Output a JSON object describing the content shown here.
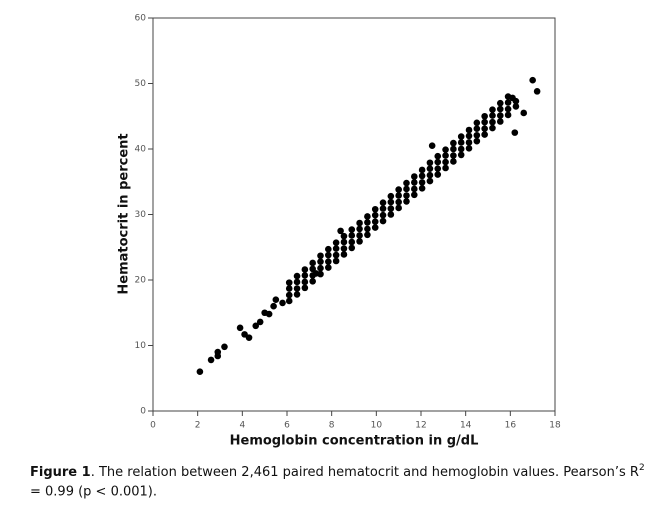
{
  "chart_data": {
    "type": "scatter",
    "xlabel": "Hemoglobin concentration in g/dL",
    "ylabel": "Hematocrit in percent",
    "xlim": [
      0,
      18
    ],
    "xticks": [
      0,
      2,
      4,
      6,
      8,
      10,
      12,
      14,
      16,
      18
    ],
    "ylim": [
      0,
      60
    ],
    "yticks": [
      0,
      10,
      20,
      30,
      40,
      50,
      60
    ],
    "color": "#000000",
    "x": [
      6.1,
      6.1,
      6.1,
      6.1,
      6.45,
      6.45,
      6.45,
      6.45,
      6.8,
      6.8,
      6.8,
      6.8,
      7.15,
      7.15,
      7.15,
      7.15,
      7.5,
      7.5,
      7.5,
      7.5,
      7.85,
      7.85,
      7.85,
      7.85,
      8.2,
      8.2,
      8.2,
      8.2,
      8.55,
      8.55,
      8.55,
      8.55,
      8.9,
      8.9,
      8.9,
      8.9,
      9.25,
      9.25,
      9.25,
      9.25,
      9.6,
      9.6,
      9.6,
      9.6,
      9.95,
      9.95,
      9.95,
      9.95,
      10.3,
      10.3,
      10.3,
      10.3,
      10.65,
      10.65,
      10.65,
      10.65,
      11,
      11,
      11,
      11,
      11.35,
      11.35,
      11.35,
      11.35,
      11.7,
      11.7,
      11.7,
      11.7,
      12.05,
      12.05,
      12.05,
      12.05,
      12.4,
      12.4,
      12.4,
      12.4,
      12.75,
      12.75,
      12.75,
      12.75,
      13.1,
      13.1,
      13.1,
      13.1,
      13.45,
      13.45,
      13.45,
      13.45,
      13.8,
      13.8,
      13.8,
      13.8,
      14.15,
      14.15,
      14.15,
      14.15,
      14.5,
      14.5,
      14.5,
      14.5,
      14.85,
      14.85,
      14.85,
      14.85,
      15.2,
      15.2,
      15.2,
      15.2,
      15.55,
      15.55,
      15.55,
      15.55,
      15.9,
      15.9,
      15.9,
      15.9,
      16.25,
      16.25,
      16.6,
      16.2,
      17,
      17.2,
      16.1,
      7.3,
      8.4,
      12.5,
      2.1,
      2.6,
      2.9,
      2.9,
      3.2,
      3.9,
      4.1,
      4.3,
      4.6,
      4.8,
      5,
      5.2,
      5.4,
      5.5,
      5.8
    ],
    "values": [
      16.8,
      17.7,
      18.7,
      19.6,
      17.8,
      18.7,
      19.7,
      20.6,
      18.8,
      19.7,
      20.7,
      21.6,
      19.8,
      20.7,
      21.7,
      22.6,
      20.9,
      21.8,
      22.8,
      23.7,
      21.9,
      22.8,
      23.8,
      24.7,
      22.9,
      23.8,
      24.8,
      25.7,
      23.9,
      24.8,
      25.8,
      26.7,
      24.9,
      25.8,
      26.8,
      27.7,
      25.9,
      26.8,
      27.8,
      28.7,
      26.9,
      27.8,
      28.8,
      29.7,
      28,
      28.9,
      29.9,
      30.8,
      29,
      29.9,
      30.9,
      31.8,
      30,
      30.9,
      31.9,
      32.8,
      31,
      31.9,
      32.9,
      33.8,
      32,
      32.9,
      33.9,
      34.8,
      33,
      33.9,
      34.9,
      35.8,
      34,
      34.9,
      35.9,
      36.8,
      35.1,
      36,
      37,
      37.9,
      36.1,
      37,
      38,
      38.9,
      37.1,
      38,
      39,
      39.9,
      38.1,
      39,
      40,
      40.9,
      39.1,
      40,
      41,
      41.9,
      40.1,
      41,
      42,
      42.9,
      41.2,
      42.1,
      43.1,
      44,
      42.2,
      43.1,
      44.1,
      45,
      43.2,
      44.1,
      45.1,
      46,
      44.2,
      45.1,
      46.1,
      47,
      45.2,
      46.1,
      47.1,
      48,
      46.5,
      47.3,
      45.5,
      42.5,
      50.5,
      48.8,
      47.8,
      21,
      27.5,
      40.5,
      6,
      7.8,
      8.4,
      9,
      9.8,
      12.7,
      11.7,
      11.2,
      13,
      13.6,
      15,
      14.8,
      16,
      17,
      16.5
    ],
    "caption": {
      "label": "Figure 1",
      "text": ". The relation between 2,461 paired hematocrit and hemoglobin values. Pearson’s R",
      "sup": "2",
      "tail": " = 0.99 (p < 0.001)."
    }
  }
}
